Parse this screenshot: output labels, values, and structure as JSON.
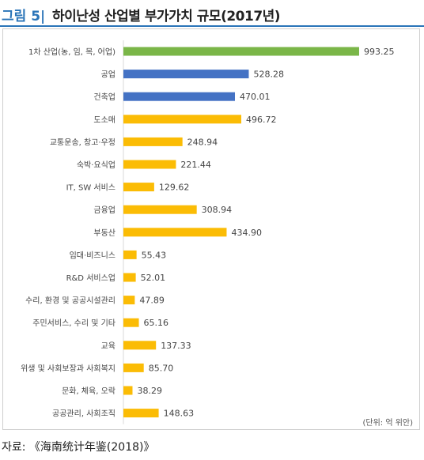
{
  "figure": {
    "label": "그림 5|",
    "title": "하이난성 산업별 부가가치 규모(2017년)",
    "unit_note": "(단위: 억 위안)",
    "source": "자료: 《海南统计年鉴(2018)》"
  },
  "colors": {
    "primary": "#7ab648",
    "secondary": "#4472c4",
    "tertiary": "#fbbc05",
    "accent": "#2a74b8"
  },
  "chart_data": {
    "type": "bar",
    "orientation": "horizontal",
    "categories": [
      "1차 산업(농, 임, 목, 어업)",
      "공업",
      "건축업",
      "도소매",
      "교통운송, 창고·우정",
      "숙박·요식업",
      "IT, SW 서비스",
      "금융업",
      "부동산",
      "임대·비즈니스",
      "R&D 서비스업",
      "수리, 환경 및 공공시설관리",
      "주민서비스, 수리 및 기타",
      "교육",
      "위생 및 사회보장과 사회복지",
      "문화, 체육, 오락",
      "공공관리, 사회조직"
    ],
    "values": [
      993.25,
      528.28,
      470.01,
      496.72,
      248.94,
      221.44,
      129.62,
      308.94,
      434.9,
      55.43,
      52.01,
      47.89,
      65.16,
      137.33,
      85.7,
      38.29,
      148.63
    ],
    "value_labels": [
      "993.25",
      "528.28",
      "470.01",
      "496.72",
      "248.94",
      "221.44",
      "129.62",
      "308.94",
      "434.90",
      "55.43",
      "52.01",
      "47.89",
      "65.16",
      "137.33",
      "85.70",
      "38.29",
      "148.63"
    ],
    "bar_colors": [
      "#7ab648",
      "#4472c4",
      "#4472c4",
      "#fbbc05",
      "#fbbc05",
      "#fbbc05",
      "#fbbc05",
      "#fbbc05",
      "#fbbc05",
      "#fbbc05",
      "#fbbc05",
      "#fbbc05",
      "#fbbc05",
      "#fbbc05",
      "#fbbc05",
      "#fbbc05",
      "#fbbc05"
    ],
    "xlim": [
      0,
      1000
    ],
    "grid": false,
    "legend": "none"
  }
}
